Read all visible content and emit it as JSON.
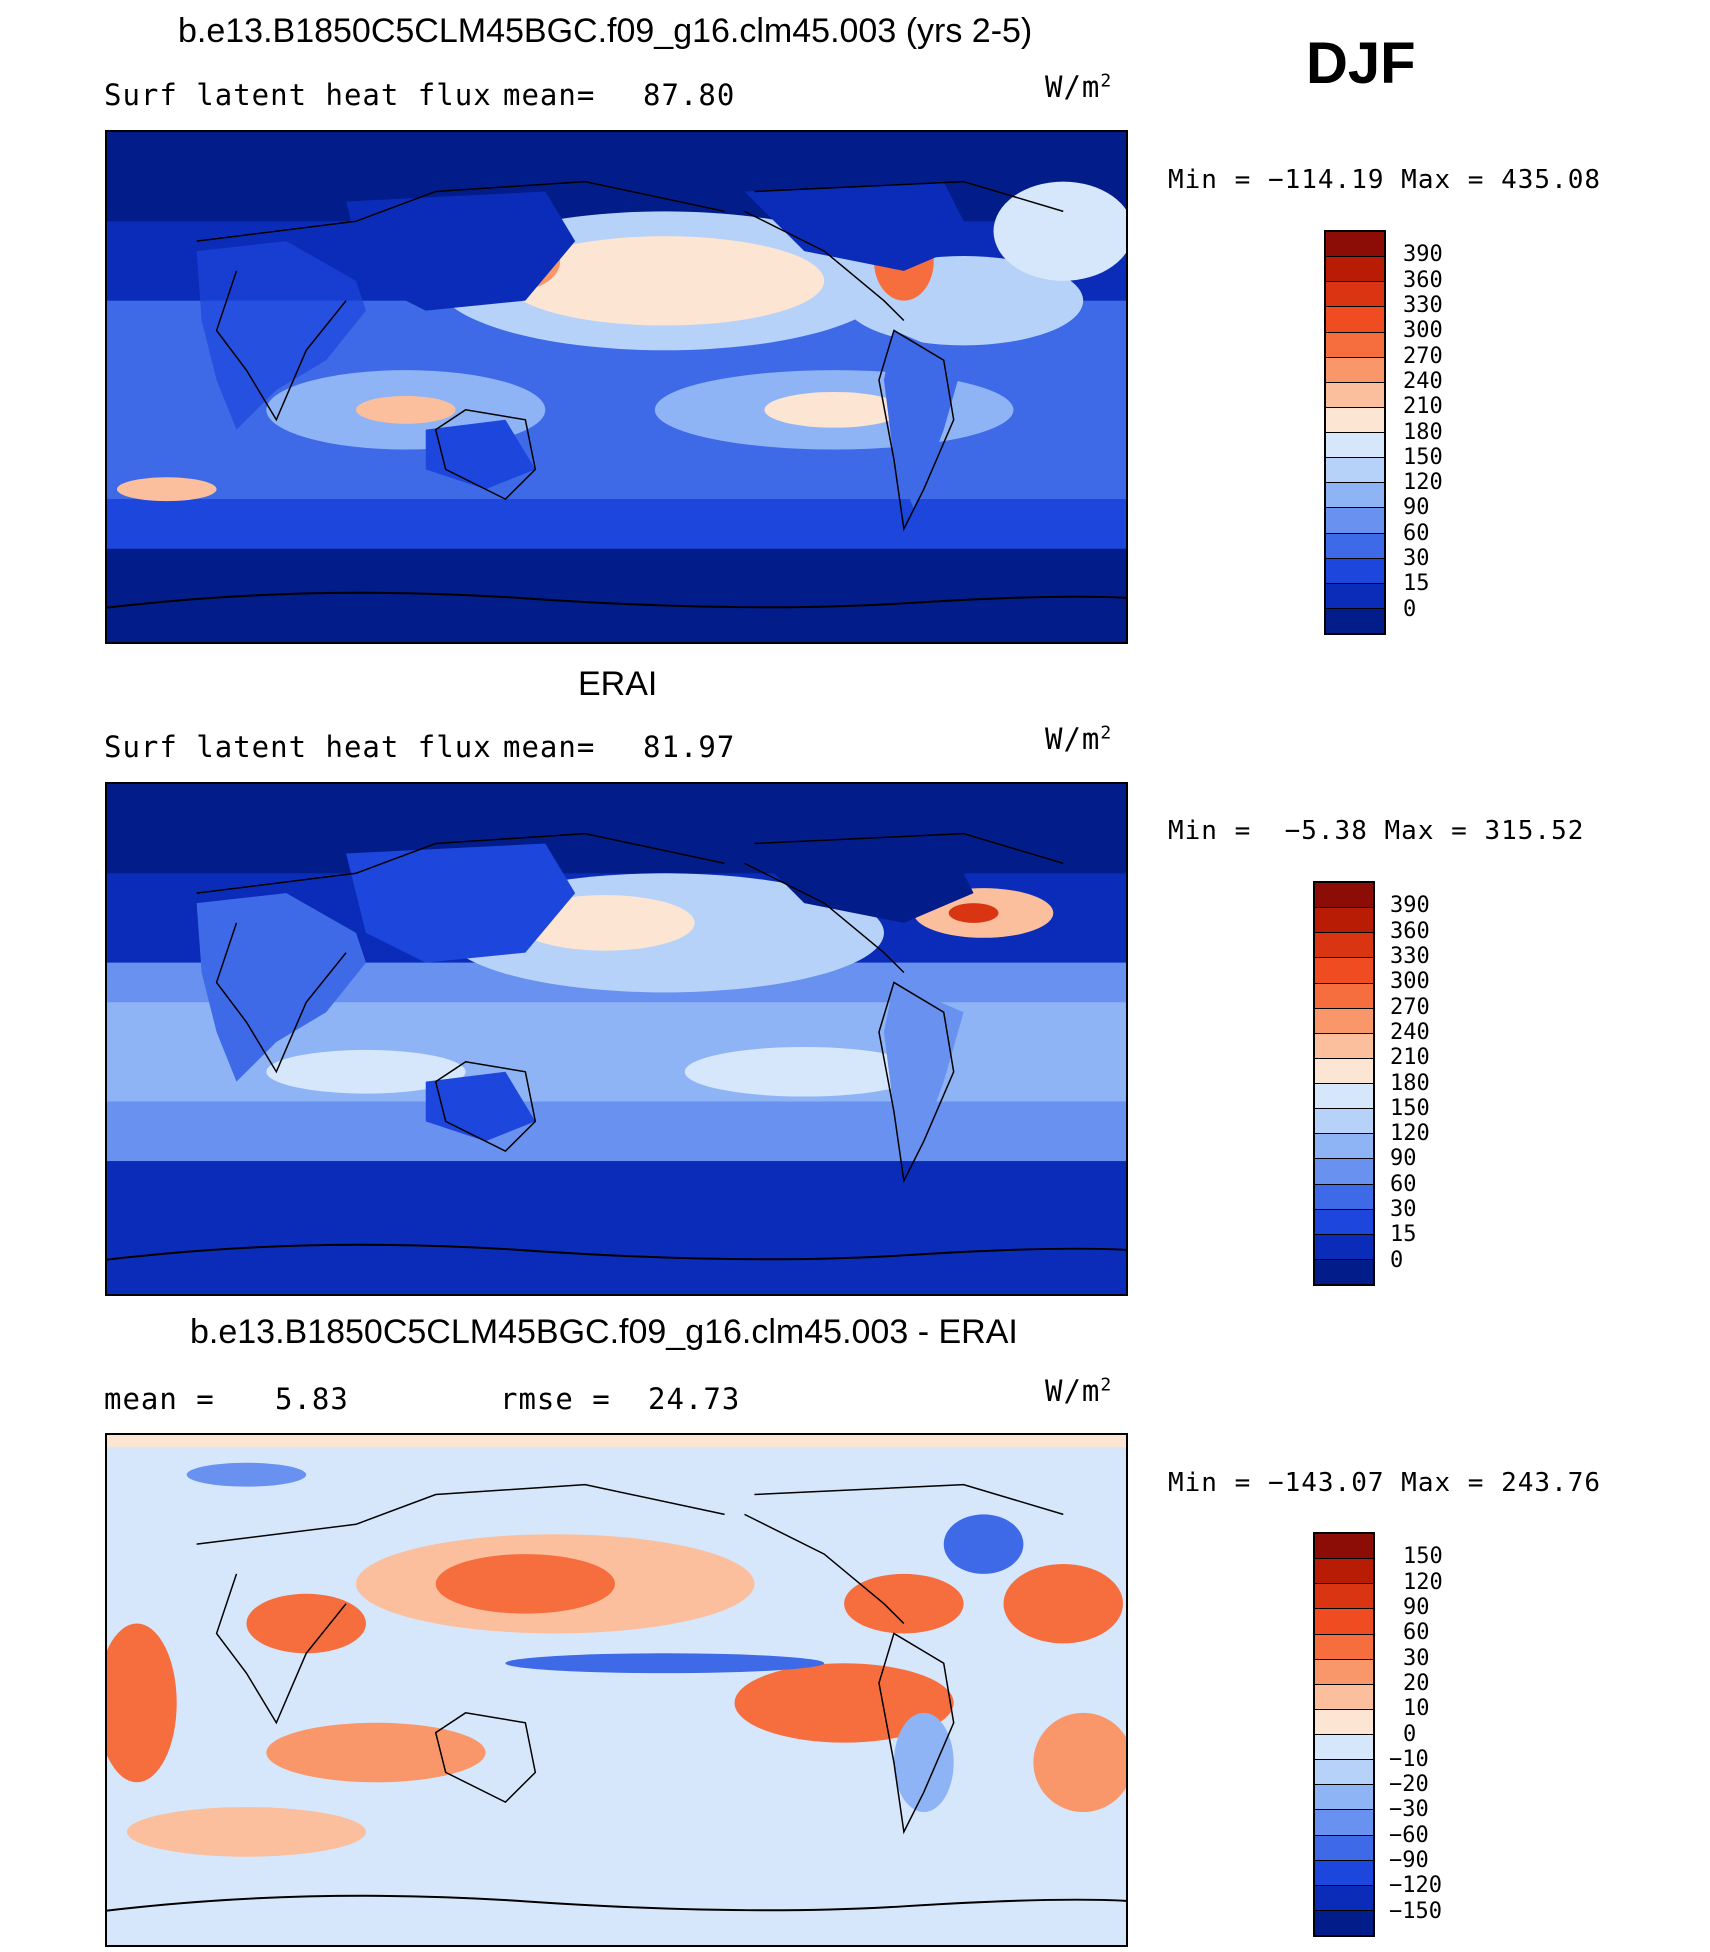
{
  "season": "DJF",
  "panel1": {
    "title": "b.e13.B1850C5CLM45BGC.f09_g16.clm45.003 (yrs 2-5)",
    "variable": "Surf latent heat flux",
    "stat_label": "mean=",
    "stat_value": "87.80",
    "units_base": "W/m",
    "units_exp": "2",
    "min_label": "Min =",
    "min_value": "−114.19",
    "max_label": "Max =",
    "max_value": "435.08",
    "colorbar_labels": [
      "390",
      "360",
      "330",
      "300",
      "270",
      "240",
      "210",
      "180",
      "150",
      "120",
      "90",
      "60",
      "30",
      "15",
      "0"
    ],
    "colorbar_colors": [
      "#8c0d05",
      "#b81c05",
      "#d93512",
      "#f04c22",
      "#f66e3e",
      "#f9966a",
      "#fbbf9d",
      "#fde5d3",
      "#d6e7fb",
      "#b7d2f8",
      "#8fb4f5",
      "#6891f0",
      "#3e6ae8",
      "#1c46dc",
      "#0b2cb8",
      "#021c8a"
    ]
  },
  "panel2": {
    "title": "ERAI",
    "variable": "Surf latent heat flux",
    "stat_label": "mean=",
    "stat_value": "81.97",
    "units_base": "W/m",
    "units_exp": "2",
    "min_label": "Min =",
    "min_value": "−5.38",
    "max_label": "Max =",
    "max_value": "315.52",
    "colorbar_labels": [
      "390",
      "360",
      "330",
      "300",
      "270",
      "240",
      "210",
      "180",
      "150",
      "120",
      "90",
      "60",
      "30",
      "15",
      "0"
    ],
    "colorbar_colors": [
      "#8c0d05",
      "#b81c05",
      "#d93512",
      "#f04c22",
      "#f66e3e",
      "#f9966a",
      "#fbbf9d",
      "#fde5d3",
      "#d6e7fb",
      "#b7d2f8",
      "#8fb4f5",
      "#6891f0",
      "#3e6ae8",
      "#1c46dc",
      "#0b2cb8",
      "#021c8a"
    ]
  },
  "panel3": {
    "title": "b.e13.B1850C5CLM45BGC.f09_g16.clm45.003 - ERAI",
    "mean_label": "mean =",
    "mean_value": "5.83",
    "rmse_label": "rmse =",
    "rmse_value": "24.73",
    "units_base": "W/m",
    "units_exp": "2",
    "min_label": "Min =",
    "min_value": "−143.07",
    "max_label": "Max =",
    "max_value": "243.76",
    "colorbar_labels": [
      "150",
      "120",
      "90",
      "60",
      "30",
      "20",
      "10",
      "0",
      "−10",
      "−20",
      "−30",
      "−60",
      "−90",
      "−120",
      "−150"
    ],
    "colorbar_colors": [
      "#8c0d05",
      "#b81c05",
      "#d93512",
      "#f04c22",
      "#f66e3e",
      "#f9966a",
      "#fbbf9d",
      "#fde5d3",
      "#d6e7fb",
      "#b7d2f8",
      "#8fb4f5",
      "#6891f0",
      "#3e6ae8",
      "#1c46dc",
      "#0b2cb8",
      "#021c8a"
    ]
  }
}
